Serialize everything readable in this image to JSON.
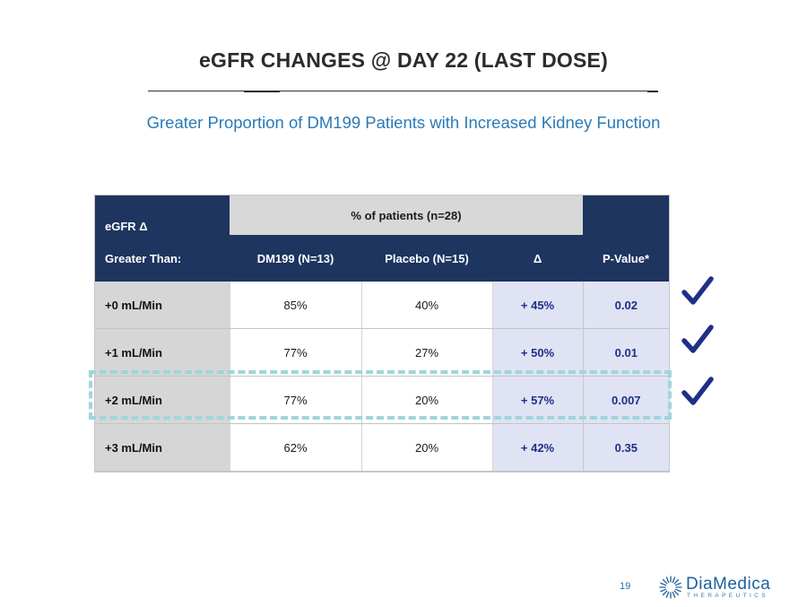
{
  "slide": {
    "title": "eGFR CHANGES @ DAY 22 (LAST DOSE)",
    "subtitle": "Greater Proportion of DM199 Patients with Increased Kidney Function",
    "page_number": "19"
  },
  "table": {
    "header_egfr": "eGFR Δ",
    "group_header": "% of patients (n=28)",
    "columns": [
      "Greater Than:",
      "DM199 (N=13)",
      "Placebo (N=15)",
      "Δ",
      "P-Value*"
    ],
    "rows": [
      {
        "label": "+0 mL/Min",
        "dm199": "85%",
        "placebo": "40%",
        "delta": "+ 45%",
        "pvalue": "0.02"
      },
      {
        "label": "+1 mL/Min",
        "dm199": "77%",
        "placebo": "27%",
        "delta": "+ 50%",
        "pvalue": "0.01"
      },
      {
        "label": "+2 mL/Min",
        "dm199": "77%",
        "placebo": "20%",
        "delta": "+ 57%",
        "pvalue": "0.007"
      },
      {
        "label": "+3 mL/Min",
        "dm199": "62%",
        "placebo": "20%",
        "delta": "+ 42%",
        "pvalue": "0.35"
      }
    ]
  },
  "annotations": {
    "checkmark_icon": "checkmark-icon",
    "checkmark_color": "#1e2f86",
    "highlight_color": "#9ed6dc"
  },
  "logo": {
    "name": "DiaMedica",
    "tagline": "THERAPEUTICS",
    "color": "#1d5fa0"
  }
}
